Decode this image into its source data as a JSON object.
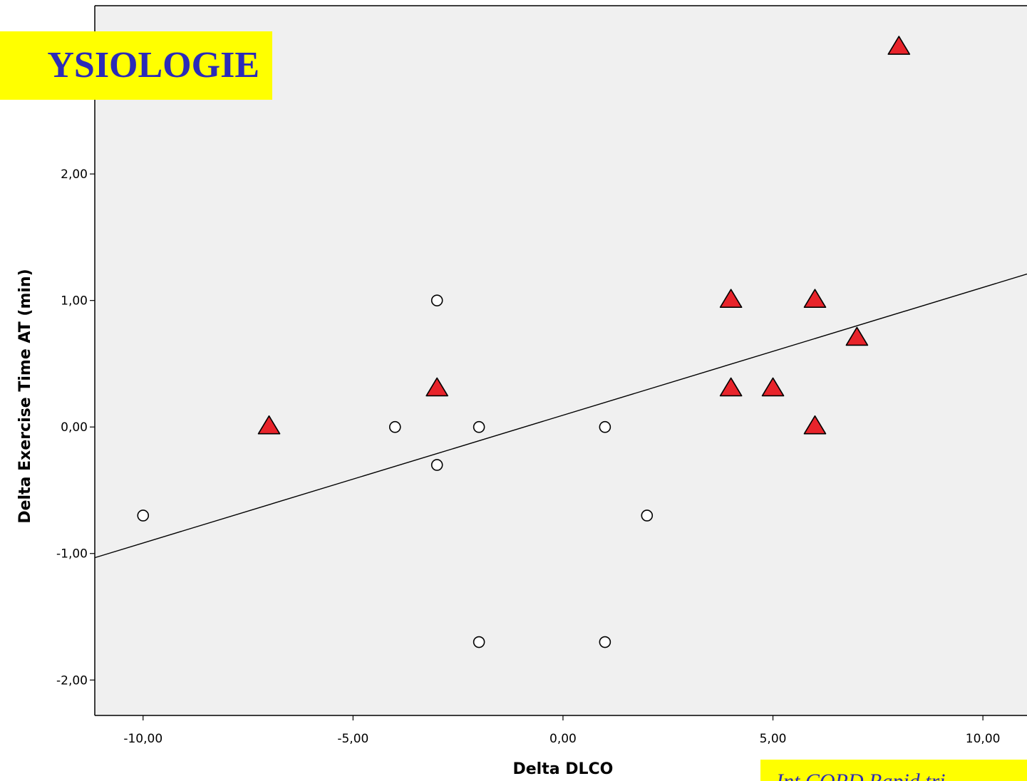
{
  "header": {
    "title": "YSIOLOGIE"
  },
  "footer": {
    "citation": "Int COPD Rapid tri"
  },
  "colors": {
    "plot_background": "#f0f0f0",
    "triangle_fill": "#e8242b",
    "circle_fill": "#ffffff",
    "badge_background": "#ffff00",
    "badge_text": "#2b2bb8"
  },
  "chart_data": {
    "type": "scatter",
    "xlabel": "Delta DLCO",
    "ylabel": "Delta Exercise Time AT (min)",
    "xlim": [
      -11.15,
      11.05
    ],
    "ylim": [
      -2.28,
      3.33
    ],
    "xticks": [
      -10,
      -5,
      0,
      5,
      10
    ],
    "yticks": [
      -2,
      -1,
      0,
      1,
      2
    ],
    "xtick_labels": [
      "-10,00",
      "-5,00",
      "0,00",
      "5,00",
      "10,00"
    ],
    "ytick_labels": [
      "-2,00",
      "-1,00",
      "0,00",
      "1,00",
      "2,00"
    ],
    "grid": false,
    "series": [
      {
        "marker": "circle",
        "points": [
          {
            "x": -10,
            "y": -0.7
          },
          {
            "x": -4,
            "y": 0.0
          },
          {
            "x": -3,
            "y": 1.0
          },
          {
            "x": -3,
            "y": -0.3
          },
          {
            "x": -2,
            "y": 0.0
          },
          {
            "x": -2,
            "y": -1.7
          },
          {
            "x": 1,
            "y": 0.0
          },
          {
            "x": 1,
            "y": -1.7
          },
          {
            "x": 2,
            "y": -0.7
          }
        ]
      },
      {
        "marker": "triangle",
        "points": [
          {
            "x": -7,
            "y": 0.0
          },
          {
            "x": -3,
            "y": 0.3
          },
          {
            "x": 4,
            "y": 1.0
          },
          {
            "x": 4,
            "y": 0.3
          },
          {
            "x": 5,
            "y": 0.3
          },
          {
            "x": 6,
            "y": 1.0
          },
          {
            "x": 6,
            "y": 0.0
          },
          {
            "x": 7,
            "y": 0.7
          },
          {
            "x": 8,
            "y": 3.0
          }
        ]
      }
    ],
    "fit_line": {
      "type": "linear",
      "slope": 0.101,
      "intercept": 0.093
    }
  }
}
